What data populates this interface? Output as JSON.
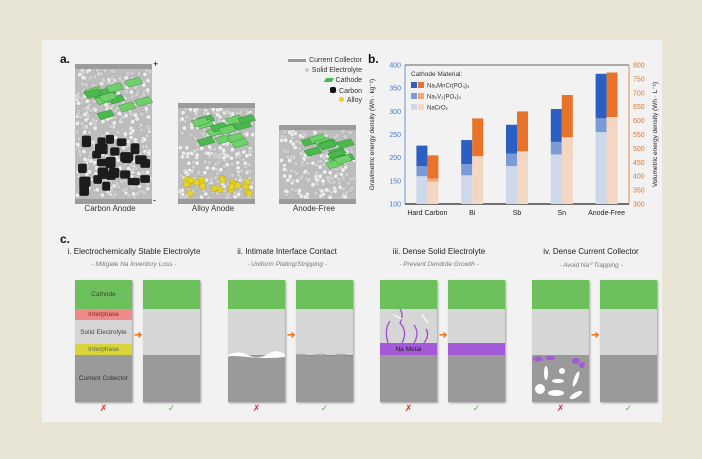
{
  "panel_a": {
    "label": "a.",
    "plus": "+",
    "minus": "-",
    "cells": [
      "Carbon Anode",
      "Alloy Anode",
      "Anode-Free"
    ],
    "legend": [
      "Current Collector",
      "Solid Electrolyte",
      "Cathode",
      "Carbon",
      "Alloy"
    ]
  },
  "panel_b": {
    "label": "b."
  },
  "chart_data": {
    "type": "bar",
    "categories": [
      "Hard Carbon",
      "Bi",
      "Sb",
      "Sn",
      "Anode-Free"
    ],
    "ylabel": "Gravimetric energy density (Wh · kg⁻¹)",
    "y2label": "Volumetric energy density (Wh · L⁻¹)",
    "ylim": [
      100,
      400
    ],
    "y2lim": [
      300,
      800
    ],
    "yticks": [
      100,
      150,
      200,
      250,
      300,
      350,
      400
    ],
    "y2ticks": [
      300,
      350,
      400,
      450,
      500,
      550,
      600,
      650,
      700,
      750,
      800
    ],
    "legend_title": "Cathode Material:",
    "legend": [
      "Na₄MnCr(PO₄)₃",
      "Na₃V₂(PO₄)₃",
      "NaCrO₂"
    ],
    "stacked_cumulative": true,
    "gravimetric": {
      "NaCrO2": [
        160,
        162,
        182,
        207,
        255
      ],
      "Na3V2(PO4)3": [
        182,
        186,
        209,
        234,
        285
      ],
      "Na4MnCr(PO4)3": [
        226,
        238,
        271,
        305,
        381
      ]
    },
    "volumetric": {
      "NaCrO2": [
        380,
        472,
        488,
        540,
        613
      ],
      "Na3V2(PO4)3": [
        392,
        472,
        490,
        540,
        613
      ],
      "Na4MnCr(PO4)3": [
        475,
        608,
        633,
        692,
        773
      ]
    },
    "colors": {
      "grav": [
        "#cdd8ea",
        "#7b9bd6",
        "#2c5fc4"
      ],
      "vol": [
        "#f4d7c3",
        "#f2aa78",
        "#e8732a"
      ]
    }
  },
  "panel_c": {
    "label": "c.",
    "groups": [
      {
        "title": "i. Electrochemically Stable Electrolyte",
        "subtitle": "- Mitigate Na Inventory Loss -"
      },
      {
        "title": "ii. Intimate Interface Contact",
        "subtitle": "- Uniform Plating/Stripping -"
      },
      {
        "title": "iii. Dense Solid Electrolyte",
        "subtitle": "- Prevent Dendrite Growth -"
      },
      {
        "title": "iv. Dense Current Collector",
        "subtitle": "- Avoid Na⁰ Trapping -"
      }
    ],
    "layer_labels": {
      "cathode": "Cathode",
      "interphase": "Interphase",
      "solid_electrolyte": "Solid Electrolyte",
      "current_collector": "Current Collector",
      "na_metal": "Na Metal"
    },
    "bad_mark": "✗",
    "good_mark": "✓",
    "arrow": "➜"
  }
}
